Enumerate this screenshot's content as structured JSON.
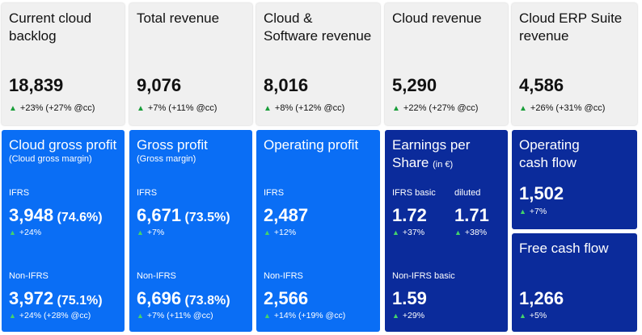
{
  "top_cards": [
    {
      "title_1": "Current cloud",
      "title_2": "backlog",
      "value": "18,839",
      "change": "+23% (+27% @cc)"
    },
    {
      "title_1": "Total revenue",
      "title_2": "",
      "value": "9,076",
      "change": "+7% (+11% @cc)"
    },
    {
      "title_1": "Cloud &",
      "title_2": "Software revenue",
      "value": "8,016",
      "change": "+8% (+12% @cc)"
    },
    {
      "title_1": "Cloud revenue",
      "title_2": "",
      "value": "5,290",
      "change": "+22% (+27% @cc)"
    },
    {
      "title_1": "Cloud ERP Suite",
      "title_2": "revenue",
      "value": "4,586",
      "change": "+26% (+31% @cc)"
    }
  ],
  "cloud_gross_profit": {
    "title": "Cloud gross profit",
    "subtitle": "(Cloud gross margin)",
    "ifrs_label": "IFRS",
    "ifrs_value": "3,948",
    "ifrs_pct": "(74.6%)",
    "ifrs_change": "+24%",
    "nonifrs_label": "Non-IFRS",
    "nonifrs_value": "3,972",
    "nonifrs_pct": "(75.1%)",
    "nonifrs_change": "+24% (+28% @cc)"
  },
  "gross_profit": {
    "title": "Gross profit",
    "subtitle": "(Gross margin)",
    "ifrs_label": "IFRS",
    "ifrs_value": "6,671",
    "ifrs_pct": "(73.5%)",
    "ifrs_change": "+7%",
    "nonifrs_label": "Non-IFRS",
    "nonifrs_value": "6,696",
    "nonifrs_pct": "(73.8%)",
    "nonifrs_change": "+7% (+11% @cc)"
  },
  "operating_profit": {
    "title": "Operating profit",
    "ifrs_label": "IFRS",
    "ifrs_value": "2,487",
    "ifrs_change": "+12%",
    "nonifrs_label": "Non-IFRS",
    "nonifrs_value": "2,566",
    "nonifrs_change": "+14% (+19% @cc)"
  },
  "eps": {
    "title_1": "Earnings per",
    "title_2": "Share",
    "unit": "(in €)",
    "basic_label": "IFRS basic",
    "basic_value": "1.72",
    "basic_change": "+37%",
    "diluted_label": "diluted",
    "diluted_value": "1.71",
    "diluted_change": "+38%",
    "nonifrs_label": "Non-IFRS basic",
    "nonifrs_value": "1.59",
    "nonifrs_change": "+29%"
  },
  "operating_cash_flow": {
    "title_1": "Operating",
    "title_2": "cash flow",
    "value": "1,502",
    "change": "+7%"
  },
  "free_cash_flow": {
    "title": "Free cash flow",
    "value": "1,266",
    "change": "+5%"
  },
  "colors": {
    "grey_card": "#f0f0f0",
    "blue_card": "#0a6ef5",
    "navy_card": "#0b2b9b",
    "up_green": "#1a9e3a"
  },
  "icons": {
    "increase": "up-triangle-icon",
    "glyph": "▲"
  }
}
